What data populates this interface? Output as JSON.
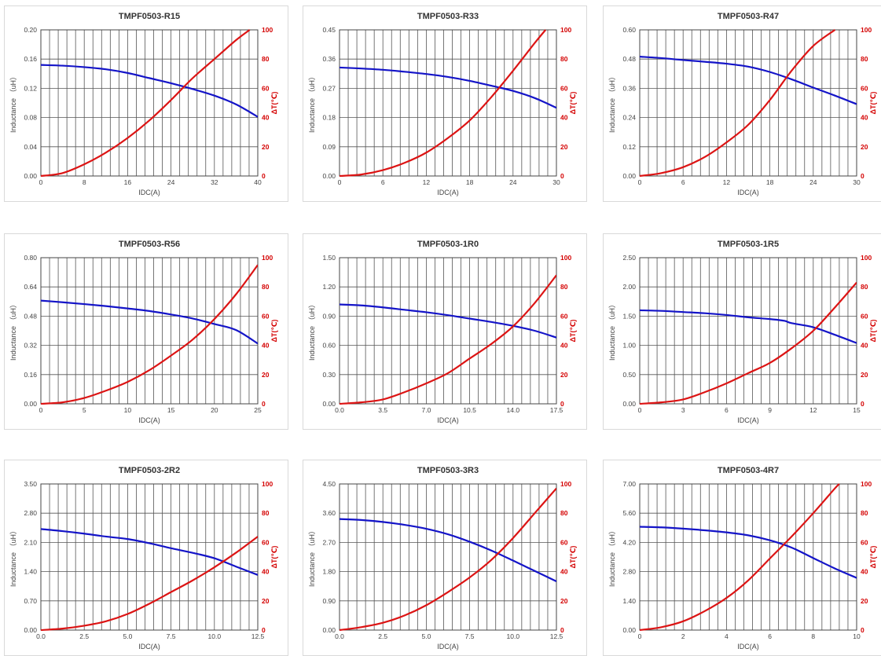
{
  "colors": {
    "inductance": "#1414c8",
    "temperature": "#dc1414",
    "grid": "#555555"
  },
  "chart_data": [
    {
      "type": "line",
      "title": "TMPF0503-R15",
      "xlabel": "IDC(A)",
      "ylabel": "Inductance （uH）",
      "y2label": "ΔT(℃)",
      "xlim": [
        0,
        40
      ],
      "ylim": [
        0,
        0.2
      ],
      "y2lim": [
        0,
        100
      ],
      "xticks": [
        "0",
        "8",
        "16",
        "24",
        "32",
        "40"
      ],
      "yticks": [
        "0.00",
        "0.04",
        "0.08",
        "0.12",
        "0.16",
        "0.20"
      ],
      "y2ticks": [
        "0",
        "20",
        "40",
        "60",
        "80",
        "100"
      ],
      "grid": true,
      "series": [
        {
          "axis": "left",
          "x": [
            0,
            4,
            8,
            12,
            16,
            20,
            24,
            28,
            32,
            36,
            40
          ],
          "y": [
            0.152,
            0.151,
            0.149,
            0.146,
            0.141,
            0.134,
            0.127,
            0.119,
            0.11,
            0.098,
            0.081
          ]
        },
        {
          "axis": "right",
          "x": [
            0,
            4,
            8,
            12,
            16,
            20,
            24,
            28,
            32,
            36,
            38.5
          ],
          "y": [
            0,
            2,
            8,
            16,
            26,
            38,
            52,
            67,
            80,
            93,
            100
          ]
        }
      ]
    },
    {
      "type": "line",
      "title": "TMPF0503-R33",
      "xlabel": "IDC(A)",
      "ylabel": "Inductance （uH）",
      "y2label": "ΔT(℃)",
      "xlim": [
        0,
        30
      ],
      "ylim": [
        0,
        0.45
      ],
      "y2lim": [
        0,
        100
      ],
      "xticks": [
        "0",
        "6",
        "12",
        "18",
        "24",
        "30"
      ],
      "yticks": [
        "0.00",
        "0.09",
        "0.18",
        "0.27",
        "0.36",
        "0.45"
      ],
      "y2ticks": [
        "0",
        "20",
        "40",
        "60",
        "80",
        "100"
      ],
      "grid": true,
      "series": [
        {
          "axis": "left",
          "x": [
            0,
            3,
            6,
            9,
            12,
            15,
            18,
            21,
            24,
            27,
            30
          ],
          "y": [
            0.334,
            0.331,
            0.327,
            0.321,
            0.314,
            0.305,
            0.293,
            0.278,
            0.262,
            0.24,
            0.21
          ]
        },
        {
          "axis": "right",
          "x": [
            0,
            3,
            6,
            9,
            12,
            15,
            18,
            21,
            24,
            27,
            28.5
          ],
          "y": [
            0,
            1,
            4,
            9,
            16,
            26,
            38,
            54,
            72,
            91,
            100
          ]
        }
      ]
    },
    {
      "type": "line",
      "title": "TMPF0503-R47",
      "xlabel": "IDC(A)",
      "ylabel": "Inductance （uH）",
      "y2label": "ΔT(℃)",
      "xlim": [
        0,
        30
      ],
      "ylim": [
        0,
        0.6
      ],
      "y2lim": [
        0,
        100
      ],
      "xticks": [
        "0",
        "6",
        "12",
        "18",
        "24",
        "30"
      ],
      "yticks": [
        "0.00",
        "0.12",
        "0.24",
        "0.36",
        "0.48",
        "0.60"
      ],
      "y2ticks": [
        "0",
        "20",
        "40",
        "60",
        "80",
        "100"
      ],
      "grid": true,
      "series": [
        {
          "axis": "left",
          "x": [
            0,
            3,
            6,
            9,
            12,
            15,
            18,
            21,
            24,
            27,
            30
          ],
          "y": [
            0.49,
            0.484,
            0.476,
            0.469,
            0.461,
            0.449,
            0.427,
            0.397,
            0.363,
            0.33,
            0.295
          ]
        },
        {
          "axis": "right",
          "x": [
            0,
            3,
            6,
            9,
            12,
            15,
            18,
            21,
            24,
            27
          ],
          "y": [
            0,
            2,
            6,
            13,
            23,
            35,
            52,
            72,
            89,
            100
          ]
        }
      ]
    },
    {
      "type": "line",
      "title": "TMPF0503-R56",
      "xlabel": "IDC(A)",
      "ylabel": "Inductance （uH）",
      "y2label": "ΔT(℃)",
      "xlim": [
        0,
        25
      ],
      "ylim": [
        0,
        0.8
      ],
      "y2lim": [
        0,
        100
      ],
      "xticks": [
        "0",
        "5",
        "10",
        "15",
        "20",
        "25"
      ],
      "yticks": [
        "0.00",
        "0.16",
        "0.32",
        "0.48",
        "0.64",
        "0.80"
      ],
      "y2ticks": [
        "0",
        "20",
        "40",
        "60",
        "80",
        "100"
      ],
      "grid": true,
      "series": [
        {
          "axis": "left",
          "x": [
            0,
            2.5,
            5,
            7.5,
            10,
            12.5,
            15,
            17.5,
            20,
            22.5,
            25
          ],
          "y": [
            0.565,
            0.556,
            0.546,
            0.535,
            0.522,
            0.508,
            0.489,
            0.467,
            0.437,
            0.404,
            0.33
          ]
        },
        {
          "axis": "right",
          "x": [
            0,
            2.5,
            5,
            7.5,
            10,
            12.5,
            15,
            17.5,
            20,
            22.5,
            25
          ],
          "y": [
            0,
            1,
            4,
            9,
            15,
            23,
            33,
            44,
            58,
            75,
            95
          ]
        }
      ]
    },
    {
      "type": "line",
      "title": "TMPF0503-1R0",
      "xlabel": "IDC(A)",
      "ylabel": "Inductance （uH）",
      "y2label": "ΔT(℃)",
      "xlim": [
        0,
        17.5
      ],
      "ylim": [
        0,
        1.5
      ],
      "y2lim": [
        0,
        100
      ],
      "xticks": [
        "0.0",
        "3.5",
        "7.0",
        "10.5",
        "14.0",
        "17.5"
      ],
      "yticks": [
        "0.00",
        "0.30",
        "0.60",
        "0.90",
        "1.20",
        "1.50"
      ],
      "y2ticks": [
        "0",
        "20",
        "40",
        "60",
        "80",
        "100"
      ],
      "grid": true,
      "series": [
        {
          "axis": "left",
          "x": [
            0,
            1.75,
            3.5,
            5.25,
            7,
            8.75,
            10.5,
            12.25,
            14,
            15.75,
            17.5
          ],
          "y": [
            1.02,
            1.01,
            0.99,
            0.965,
            0.94,
            0.91,
            0.875,
            0.84,
            0.8,
            0.75,
            0.68
          ]
        },
        {
          "axis": "right",
          "x": [
            0,
            1.75,
            3.5,
            5.25,
            7,
            8.75,
            10.5,
            12.25,
            14,
            15.75,
            17.5
          ],
          "y": [
            0,
            1,
            3,
            8,
            14,
            21,
            31,
            41,
            53,
            69,
            88
          ]
        }
      ]
    },
    {
      "type": "line",
      "title": "TMPF0503-1R5",
      "xlabel": "IDC(A)",
      "ylabel": "Inductance （uH）",
      "y2label": "ΔT(℃)",
      "xlim": [
        0,
        15
      ],
      "ylim": [
        0,
        2.5
      ],
      "y2lim": [
        0,
        100
      ],
      "xticks": [
        "0",
        "3",
        "6",
        "9",
        "12",
        "15"
      ],
      "yticks": [
        "0.00",
        "0.50",
        "1.00",
        "1.50",
        "2.00",
        "2.50"
      ],
      "y2ticks": [
        "0",
        "20",
        "40",
        "60",
        "80",
        "100"
      ],
      "grid": true,
      "series": [
        {
          "axis": "left",
          "x": [
            0,
            1.5,
            3,
            4.5,
            6,
            7.5,
            9,
            10,
            10.5,
            12,
            13.5,
            15
          ],
          "y": [
            1.6,
            1.59,
            1.57,
            1.55,
            1.52,
            1.48,
            1.45,
            1.42,
            1.38,
            1.31,
            1.18,
            1.04
          ]
        },
        {
          "axis": "right",
          "x": [
            0,
            1.5,
            3,
            4.5,
            6,
            7.5,
            9,
            10.5,
            12,
            13.5,
            15
          ],
          "y": [
            0,
            1,
            3,
            8,
            14,
            21,
            28,
            38,
            50,
            66,
            83
          ]
        }
      ]
    },
    {
      "type": "line",
      "title": "TMPF0503-2R2",
      "xlabel": "IDC(A)",
      "ylabel": "Inductance （uH）",
      "y2label": "ΔT(℃)",
      "xlim": [
        0,
        12.5
      ],
      "ylim": [
        0,
        3.5
      ],
      "y2lim": [
        0,
        100
      ],
      "xticks": [
        "0.0",
        "2.5",
        "5.0",
        "7.5",
        "10.0",
        "12.5"
      ],
      "yticks": [
        "0.00",
        "0.70",
        "1.40",
        "2.10",
        "2.80",
        "3.50"
      ],
      "y2ticks": [
        "0",
        "20",
        "40",
        "60",
        "80",
        "100"
      ],
      "grid": true,
      "series": [
        {
          "axis": "left",
          "x": [
            0,
            1.25,
            2.5,
            3.75,
            5,
            6.25,
            7.5,
            8.75,
            10,
            11.25,
            12.5
          ],
          "y": [
            2.42,
            2.37,
            2.31,
            2.24,
            2.18,
            2.08,
            1.96,
            1.85,
            1.72,
            1.52,
            1.32
          ]
        },
        {
          "axis": "right",
          "x": [
            0,
            1.25,
            2.5,
            3.75,
            5,
            6.25,
            7.5,
            8.75,
            10,
            11.25,
            12.5
          ],
          "y": [
            0,
            1,
            3,
            6,
            11,
            18,
            26,
            34,
            43,
            53,
            64
          ]
        }
      ]
    },
    {
      "type": "line",
      "title": "TMPF0503-3R3",
      "xlabel": "IDC(A)",
      "ylabel": "Inductance （uH）",
      "y2label": "ΔT(℃)",
      "xlim": [
        0,
        12.5
      ],
      "ylim": [
        0,
        4.5
      ],
      "y2lim": [
        0,
        100
      ],
      "xticks": [
        "0.0",
        "2.5",
        "5.0",
        "7.5",
        "10.0",
        "12.5"
      ],
      "yticks": [
        "0.00",
        "0.90",
        "1.80",
        "2.70",
        "3.60",
        "4.50"
      ],
      "y2ticks": [
        "0",
        "20",
        "40",
        "60",
        "80",
        "100"
      ],
      "grid": true,
      "series": [
        {
          "axis": "left",
          "x": [
            0,
            1.25,
            2.5,
            3.75,
            5,
            6.25,
            7.5,
            8.75,
            10,
            11.25,
            12.5
          ],
          "y": [
            3.42,
            3.39,
            3.33,
            3.24,
            3.12,
            2.95,
            2.72,
            2.45,
            2.14,
            1.82,
            1.5
          ]
        },
        {
          "axis": "right",
          "x": [
            0,
            1.25,
            2.5,
            3.75,
            5,
            6.25,
            7.5,
            8.75,
            10,
            11.25,
            12.5
          ],
          "y": [
            0,
            2,
            5,
            10,
            17,
            26,
            36,
            48,
            63,
            80,
            97
          ]
        }
      ]
    },
    {
      "type": "line",
      "title": "TMPF0503-4R7",
      "xlabel": "IDC(A)",
      "ylabel": "Inductance （uH）",
      "y2label": "ΔT(℃)",
      "xlim": [
        0,
        10
      ],
      "ylim": [
        0,
        7
      ],
      "y2lim": [
        0,
        100
      ],
      "xticks": [
        "0",
        "2",
        "4",
        "6",
        "8",
        "10"
      ],
      "yticks": [
        "0.00",
        "1.40",
        "2.80",
        "4.20",
        "5.60",
        "7.00"
      ],
      "y2ticks": [
        "0",
        "20",
        "40",
        "60",
        "80",
        "100"
      ],
      "grid": true,
      "series": [
        {
          "axis": "left",
          "x": [
            0,
            1,
            2,
            3,
            4,
            5,
            6,
            7,
            8,
            9,
            10
          ],
          "y": [
            4.95,
            4.92,
            4.86,
            4.78,
            4.68,
            4.54,
            4.3,
            3.95,
            3.45,
            2.95,
            2.5
          ]
        },
        {
          "axis": "right",
          "x": [
            0,
            1,
            2,
            3,
            4,
            5,
            6,
            7,
            8,
            9,
            9.2
          ],
          "y": [
            0,
            2,
            6,
            13,
            22,
            34,
            49,
            64,
            80,
            97,
            100
          ]
        }
      ]
    }
  ]
}
